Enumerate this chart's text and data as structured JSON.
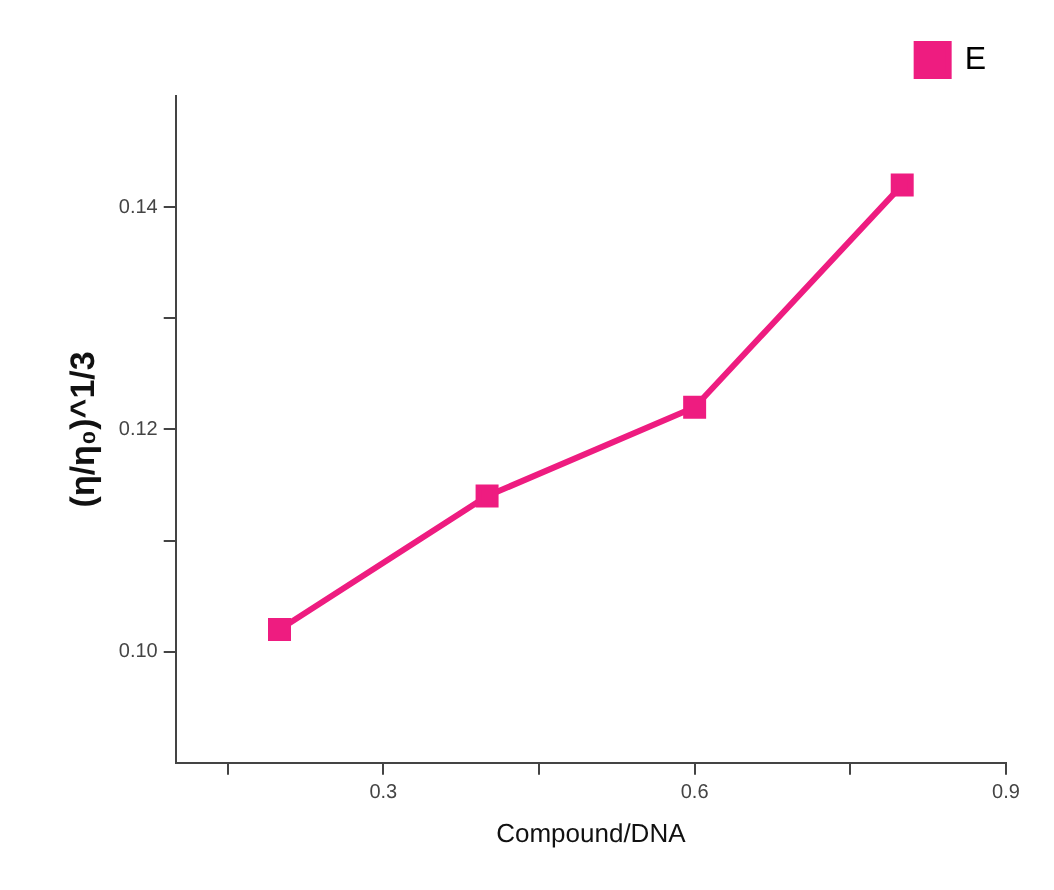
{
  "chart_data": {
    "type": "line",
    "xlabel": "Compound/DNA",
    "ylabel": "(η/η₀)^1/3",
    "x": [
      0.2,
      0.4,
      0.6,
      0.8
    ],
    "series": [
      {
        "name": "E",
        "color": "#ee1c80",
        "values": [
          0.102,
          0.114,
          0.122,
          0.142
        ]
      }
    ],
    "xlim": [
      0.1,
      0.9
    ],
    "xticks": [
      {
        "value": 0.15,
        "label": null
      },
      0.3,
      {
        "value": 0.45,
        "label": null
      },
      0.6,
      {
        "value": 0.75,
        "label": null
      },
      0.9
    ],
    "ylim": [
      0.09,
      0.15
    ],
    "yticks": [
      {
        "value": 0.1,
        "label": "0.10"
      },
      {
        "value": 0.11,
        "label": null
      },
      0.12,
      {
        "value": 0.13,
        "label": null
      },
      0.14
    ],
    "grid": false,
    "legend": "top right",
    "marker": "square",
    "line_style": "solid"
  }
}
